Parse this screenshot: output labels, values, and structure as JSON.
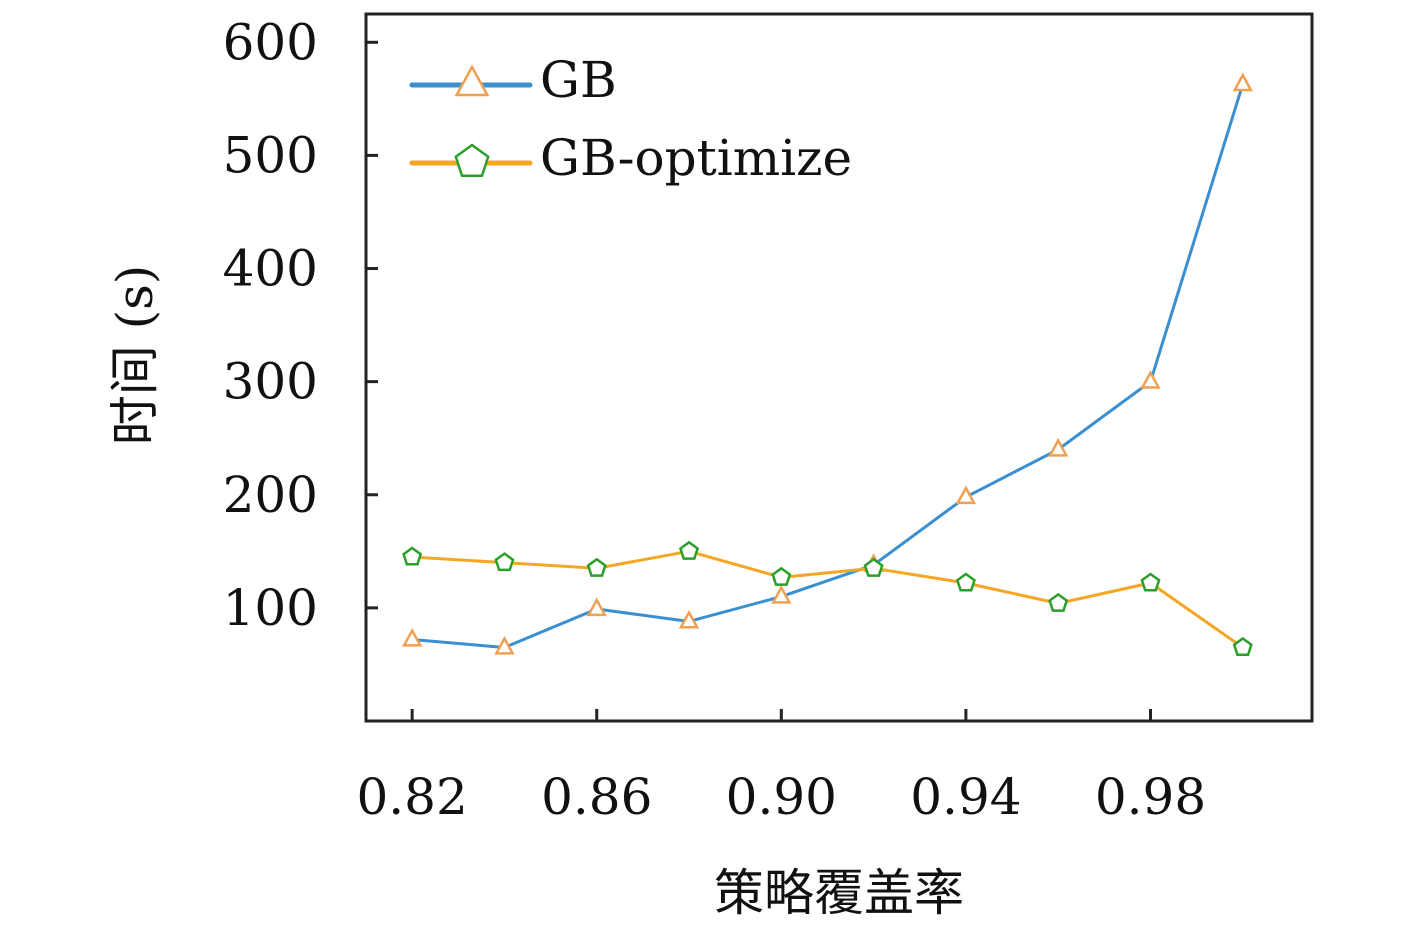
{
  "chart_data": {
    "type": "line",
    "xlabel": "策略覆盖率",
    "ylabel": "时间 (s)",
    "x": [
      0.82,
      0.84,
      0.86,
      0.88,
      0.9,
      0.92,
      0.94,
      0.96,
      0.98,
      1.0
    ],
    "xticks": [
      0.82,
      0.86,
      0.9,
      0.94,
      0.98
    ],
    "xtick_labels": [
      "0.82",
      "0.86",
      "0.90",
      "0.94",
      "0.98"
    ],
    "yticks": [
      100,
      200,
      300,
      400,
      500,
      600
    ],
    "ytick_labels": [
      "100",
      "200",
      "300",
      "400",
      "500",
      "600"
    ],
    "xlim": [
      0.81,
      1.015
    ],
    "ylim": [
      0,
      625
    ],
    "grid": false,
    "legend_position": "top-left",
    "series": [
      {
        "name": "GB",
        "line_color": "#3a8fd1",
        "marker": "triangle",
        "marker_color": "#f0a050",
        "values": [
          72,
          65,
          99,
          88,
          110,
          138,
          198,
          240,
          300,
          563
        ]
      },
      {
        "name": "GB-optimize",
        "line_color": "#f5a623",
        "marker": "pentagon",
        "marker_color": "#2aa02a",
        "values": [
          145,
          140,
          135,
          150,
          127,
          135,
          122,
          104,
          122,
          65
        ]
      }
    ]
  }
}
